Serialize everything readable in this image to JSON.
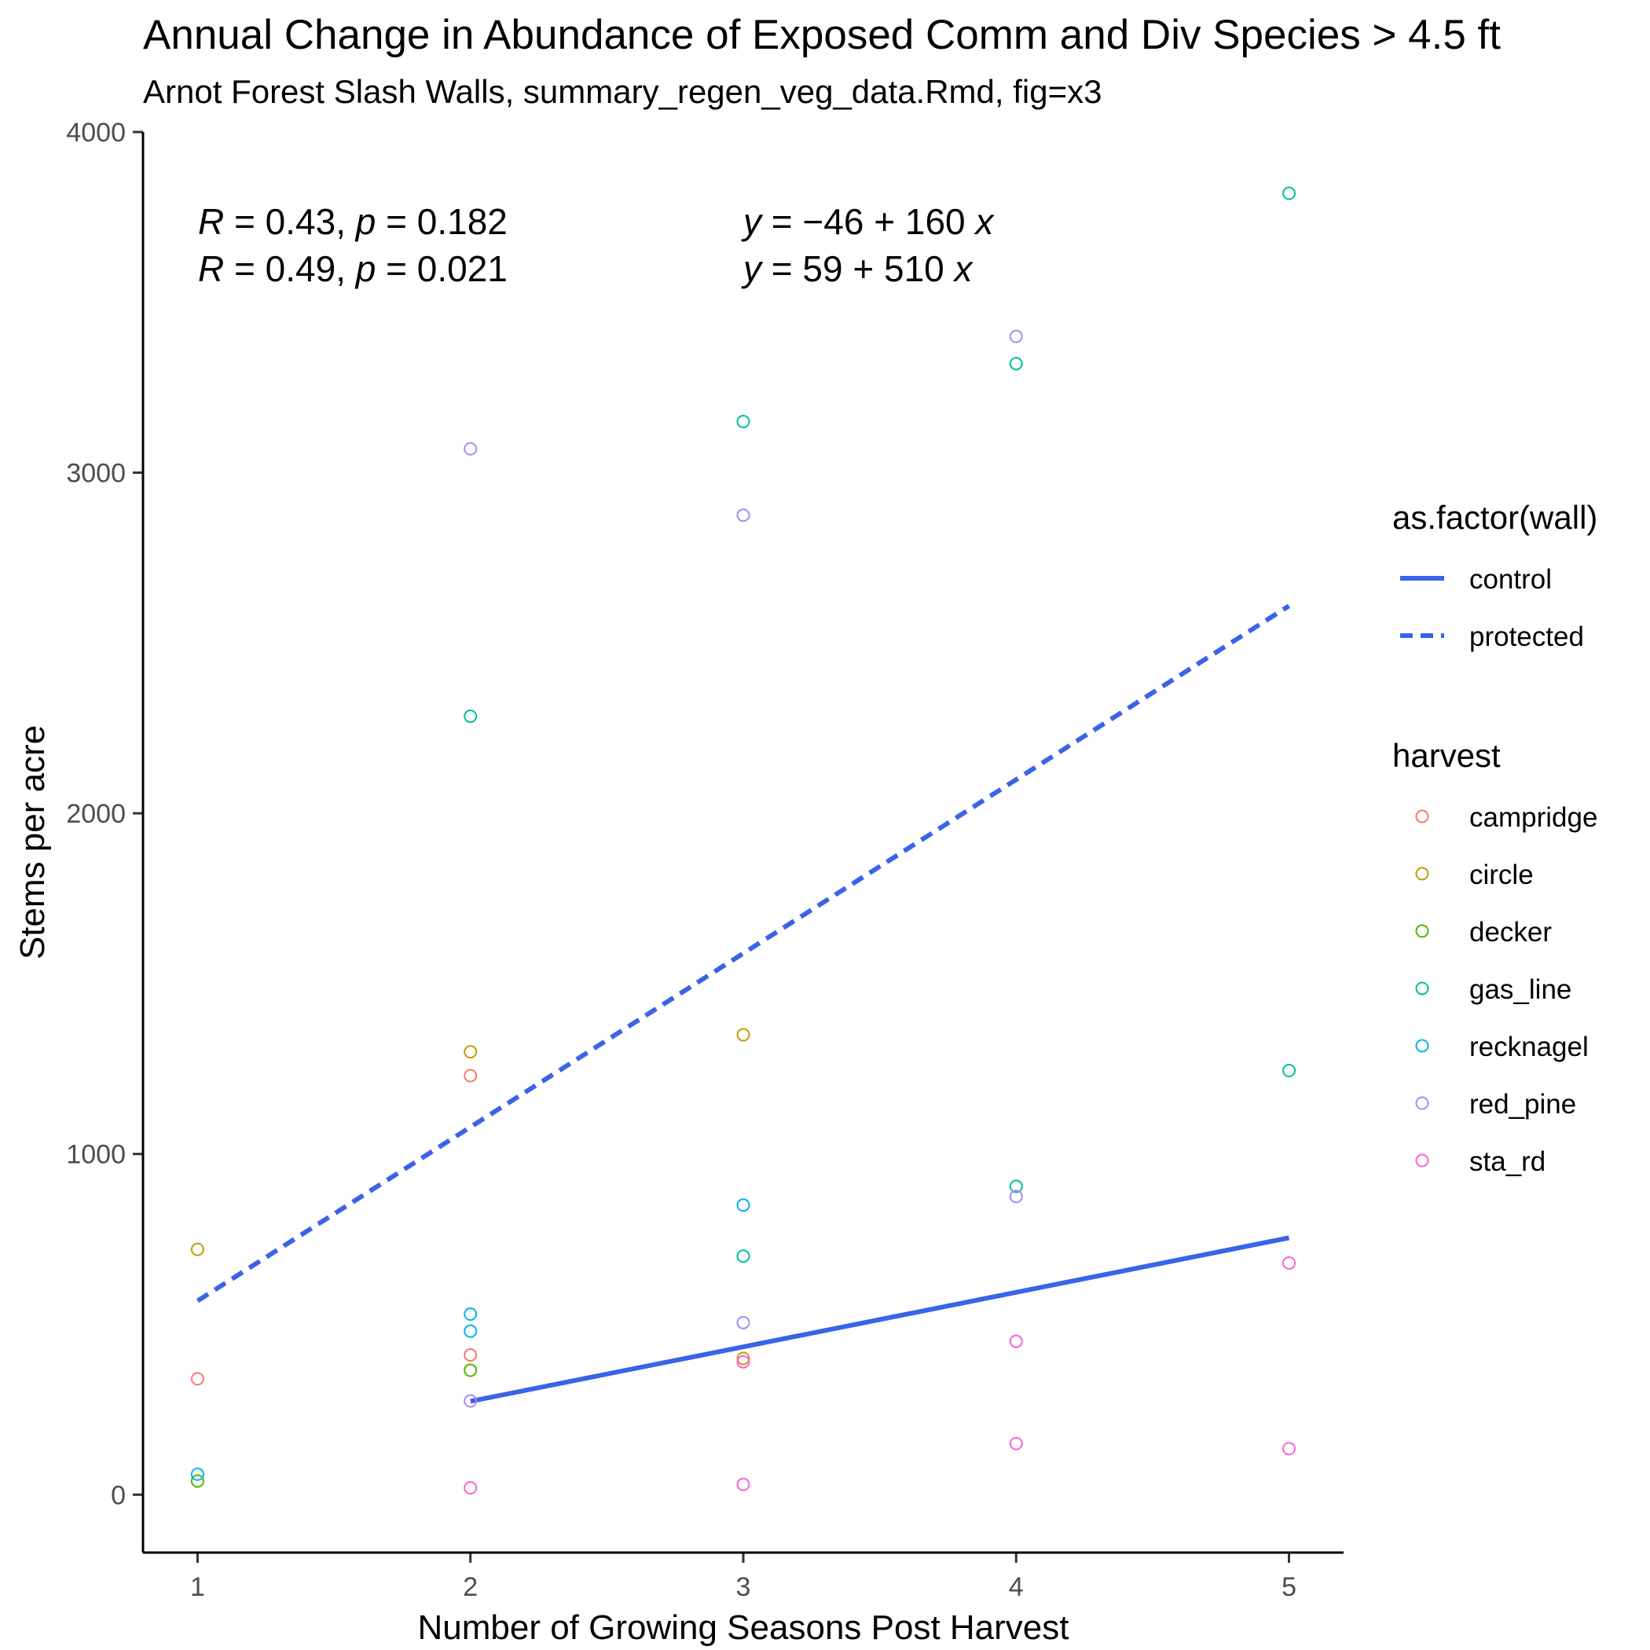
{
  "chart_data": {
    "type": "scatter",
    "title": "Annual Change in Abundance of Exposed Comm and Div Species > 4.5 ft",
    "subtitle": "Arnot Forest Slash Walls, summary_regen_veg_data.Rmd, fig=x3",
    "xlabel": "Number of Growing Seasons Post Harvest",
    "ylabel": "Stems per acre",
    "xlim": [
      0.8,
      5.2
    ],
    "ylim": [
      -170,
      4000
    ],
    "x_ticks": [
      1,
      2,
      3,
      4,
      5
    ],
    "y_ticks": [
      0,
      1000,
      2000,
      3000,
      4000
    ],
    "grid": false,
    "legend_position": "right",
    "wall_legend": {
      "title": "as.factor(wall)",
      "items": [
        {
          "label": "control",
          "dash": "solid"
        },
        {
          "label": "protected",
          "dash": "dashed"
        }
      ]
    },
    "harvest_legend": {
      "title": "harvest",
      "items": [
        {
          "label": "campridge",
          "color": "#F8766D"
        },
        {
          "label": "circle",
          "color": "#C49A00"
        },
        {
          "label": "decker",
          "color": "#53B400"
        },
        {
          "label": "gas_line",
          "color": "#00C094"
        },
        {
          "label": "recknagel",
          "color": "#00B6EB"
        },
        {
          "label": "red_pine",
          "color": "#A58AFF"
        },
        {
          "label": "sta_rd",
          "color": "#FB61D7"
        }
      ]
    },
    "line_color": "#3B63E8",
    "fit_lines": [
      {
        "wall": "control",
        "dash": "solid",
        "intercept": -46,
        "slope": 160,
        "x_range": [
          2,
          5
        ]
      },
      {
        "wall": "protected",
        "dash": "dashed",
        "intercept": 59,
        "slope": 510,
        "x_range": [
          1,
          5
        ]
      }
    ],
    "stats": [
      {
        "R": "0.43",
        "p": "0.182",
        "intercept": "−46",
        "slope": "160"
      },
      {
        "R": "0.49",
        "p": "0.021",
        "intercept": "59",
        "slope": "510"
      }
    ],
    "points": [
      {
        "x": 1,
        "y": 340,
        "harvest": "campridge"
      },
      {
        "x": 1,
        "y": 720,
        "harvest": "circle"
      },
      {
        "x": 1,
        "y": 40,
        "harvest": "decker"
      },
      {
        "x": 1,
        "y": 60,
        "harvest": "recknagel"
      },
      {
        "x": 2,
        "y": 1230,
        "harvest": "campridge"
      },
      {
        "x": 2,
        "y": 410,
        "harvest": "campridge"
      },
      {
        "x": 2,
        "y": 1300,
        "harvest": "circle"
      },
      {
        "x": 2,
        "y": 365,
        "harvest": "decker"
      },
      {
        "x": 2,
        "y": 2285,
        "harvest": "gas_line"
      },
      {
        "x": 2,
        "y": 530,
        "harvest": "recknagel"
      },
      {
        "x": 2,
        "y": 480,
        "harvest": "recknagel"
      },
      {
        "x": 2,
        "y": 3070,
        "harvest": "red_pine"
      },
      {
        "x": 2,
        "y": 275,
        "harvest": "red_pine"
      },
      {
        "x": 2,
        "y": 20,
        "harvest": "sta_rd"
      },
      {
        "x": 3,
        "y": 1350,
        "harvest": "circle"
      },
      {
        "x": 3,
        "y": 400,
        "harvest": "circle"
      },
      {
        "x": 3,
        "y": 3150,
        "harvest": "gas_line"
      },
      {
        "x": 3,
        "y": 700,
        "harvest": "gas_line"
      },
      {
        "x": 3,
        "y": 850,
        "harvest": "recknagel"
      },
      {
        "x": 3,
        "y": 2875,
        "harvest": "red_pine"
      },
      {
        "x": 3,
        "y": 505,
        "harvest": "red_pine"
      },
      {
        "x": 3,
        "y": 390,
        "harvest": "sta_rd"
      },
      {
        "x": 3,
        "y": 30,
        "harvest": "sta_rd"
      },
      {
        "x": 4,
        "y": 3320,
        "harvest": "gas_line"
      },
      {
        "x": 4,
        "y": 905,
        "harvest": "gas_line"
      },
      {
        "x": 4,
        "y": 3400,
        "harvest": "red_pine"
      },
      {
        "x": 4,
        "y": 875,
        "harvest": "red_pine"
      },
      {
        "x": 4,
        "y": 450,
        "harvest": "sta_rd"
      },
      {
        "x": 4,
        "y": 150,
        "harvest": "sta_rd"
      },
      {
        "x": 5,
        "y": 3820,
        "harvest": "gas_line"
      },
      {
        "x": 5,
        "y": 1245,
        "harvest": "gas_line"
      },
      {
        "x": 5,
        "y": 680,
        "harvest": "sta_rd"
      },
      {
        "x": 5,
        "y": 135,
        "harvest": "sta_rd"
      }
    ]
  }
}
